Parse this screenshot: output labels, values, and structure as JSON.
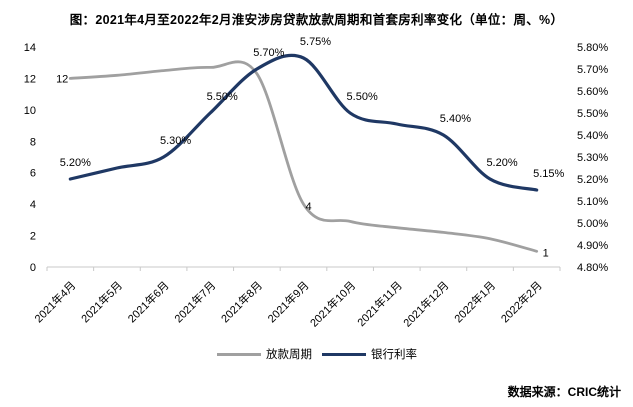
{
  "title": "图：2021年4月至2022年2月淮安涉房贷款放款周期和首套房利率变化（单位：周、%）",
  "source": "数据来源：CRIC统计",
  "colors": {
    "loan_period": "#a0a0a0",
    "bank_rate": "#1f3864",
    "axis": "#c9c9c9",
    "text": "#000000"
  },
  "legend": [
    {
      "label": "放款周期",
      "color": "#a0a0a0"
    },
    {
      "label": "银行利率",
      "color": "#1f3864"
    }
  ],
  "chart_data": {
    "type": "line",
    "smooth": true,
    "categories": [
      "2021年4月",
      "2021年5月",
      "2021年6月",
      "2021年7月",
      "2021年8月",
      "2021年9月",
      "2021年10月",
      "2021年11月",
      "2021年12月",
      "2022年1月",
      "2022年2月"
    ],
    "series": [
      {
        "name": "放款周期",
        "axis": "left",
        "unit": "周",
        "color": "#a0a0a0",
        "width": 2.8,
        "values": [
          12,
          12.2,
          12.5,
          12.7,
          12.3,
          4,
          2.9,
          2.5,
          2.2,
          1.8,
          1
        ],
        "point_labels": [
          "12",
          null,
          null,
          null,
          null,
          "4",
          null,
          null,
          null,
          null,
          "1"
        ]
      },
      {
        "name": "银行利率",
        "axis": "right",
        "unit": "%",
        "color": "#1f3864",
        "width": 3.2,
        "values": [
          5.2,
          5.25,
          5.3,
          5.5,
          5.7,
          5.75,
          5.5,
          5.45,
          5.4,
          5.2,
          5.15
        ],
        "point_labels": [
          "5.20%",
          null,
          "5.30%",
          "5.50%",
          "5.70%",
          "5.75%",
          "5.50%",
          null,
          "5.40%",
          "5.20%",
          "5.15%"
        ]
      }
    ],
    "left_axis": {
      "min": 0,
      "max": 14,
      "tick_labels": [
        "0",
        "2",
        "4",
        "6",
        "8",
        "10",
        "12",
        "14"
      ]
    },
    "right_axis": {
      "min": 4.8,
      "max": 5.8,
      "tick_labels": [
        "4.80%",
        "4.90%",
        "5.00%",
        "5.10%",
        "5.20%",
        "5.30%",
        "5.40%",
        "5.50%",
        "5.60%",
        "5.70%",
        "5.80%"
      ]
    },
    "grid": false,
    "legend_position": "bottom"
  }
}
